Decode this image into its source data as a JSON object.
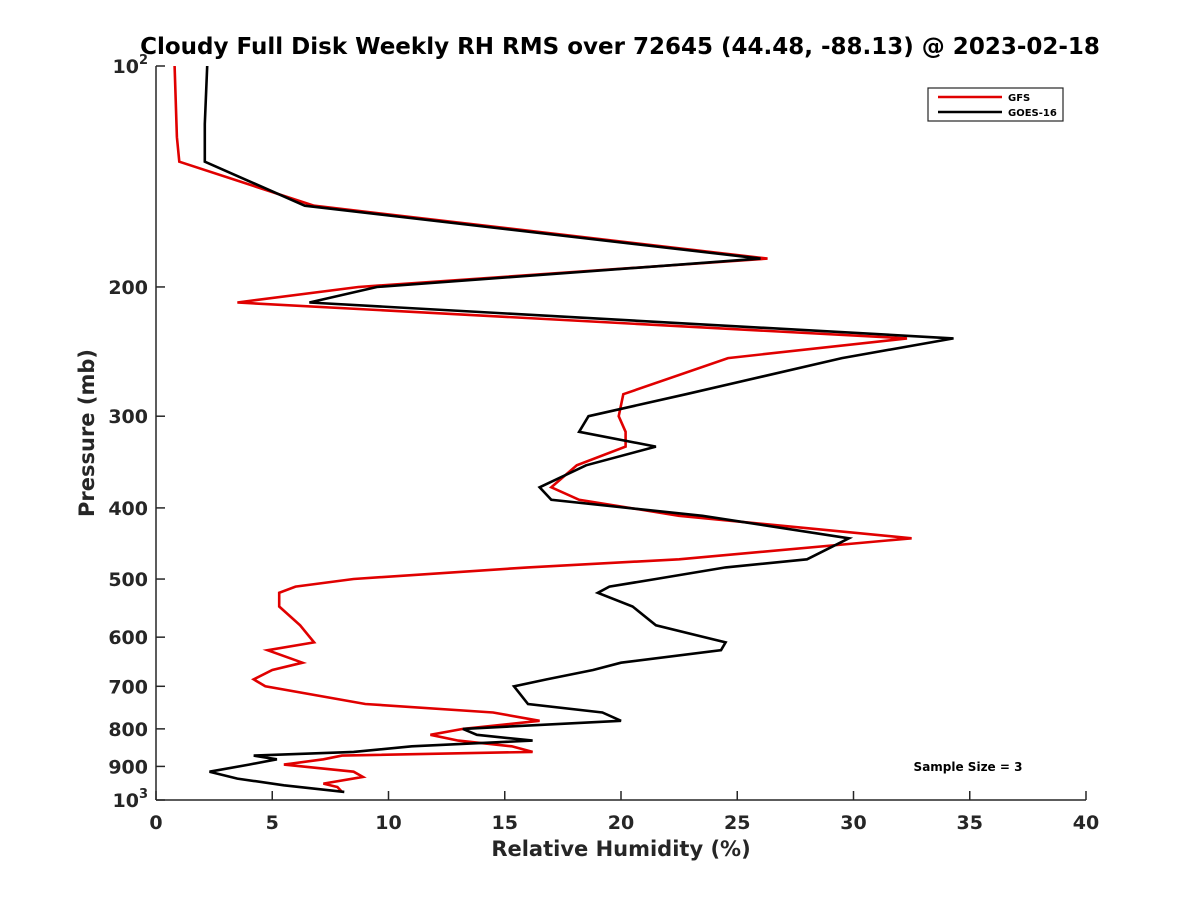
{
  "chart_data": {
    "type": "line",
    "title": "Cloudy Full Disk Weekly RH RMS over 72645 (44.48, -88.13) @ 2023-02-18",
    "xlabel": "Relative Humidity (%)",
    "ylabel": "Pressure (mb)",
    "xlim": [
      0,
      40
    ],
    "ylim": [
      100,
      1000
    ],
    "y_scale": "log",
    "y_reversed": true,
    "grid": false,
    "legend_position": "top-right",
    "xticks": [
      0,
      5,
      10,
      15,
      20,
      25,
      30,
      35,
      40
    ],
    "xtick_labels": [
      "0",
      "5",
      "10",
      "15",
      "20",
      "25",
      "30",
      "35",
      "40"
    ],
    "yticks": [
      100,
      200,
      300,
      400,
      500,
      600,
      700,
      800,
      900,
      1000
    ],
    "ytick_labels": [
      {
        "base": "10",
        "exp": "2"
      },
      {
        "base": "200",
        "exp": ""
      },
      {
        "base": "300",
        "exp": ""
      },
      {
        "base": "400",
        "exp": ""
      },
      {
        "base": "500",
        "exp": ""
      },
      {
        "base": "600",
        "exp": ""
      },
      {
        "base": "700",
        "exp": ""
      },
      {
        "base": "800",
        "exp": ""
      },
      {
        "base": "900",
        "exp": ""
      },
      {
        "base": "10",
        "exp": "3"
      }
    ],
    "annotation": "Sample Size = 3",
    "series": [
      {
        "name": "GFS",
        "color": "#e00000",
        "points": [
          [
            0.8,
            100
          ],
          [
            0.9,
            125
          ],
          [
            1.0,
            135
          ],
          [
            6.8,
            155
          ],
          [
            26.3,
            183
          ],
          [
            8.7,
            200
          ],
          [
            3.5,
            210
          ],
          [
            32.3,
            235
          ],
          [
            24.6,
            250
          ],
          [
            20.1,
            280
          ],
          [
            19.9,
            300
          ],
          [
            20.2,
            315
          ],
          [
            20.2,
            330
          ],
          [
            18.1,
            350
          ],
          [
            17.0,
            375
          ],
          [
            18.2,
            390
          ],
          [
            22.5,
            410
          ],
          [
            32.5,
            440
          ],
          [
            22.5,
            470
          ],
          [
            16.0,
            482
          ],
          [
            8.5,
            500
          ],
          [
            6.0,
            512
          ],
          [
            5.3,
            522
          ],
          [
            5.3,
            545
          ],
          [
            6.2,
            578
          ],
          [
            6.8,
            610
          ],
          [
            4.8,
            625
          ],
          [
            6.3,
            650
          ],
          [
            5.0,
            665
          ],
          [
            4.2,
            685
          ],
          [
            4.7,
            700
          ],
          [
            9.0,
            740
          ],
          [
            14.5,
            760
          ],
          [
            16.5,
            780
          ],
          [
            13.2,
            800
          ],
          [
            11.8,
            815
          ],
          [
            13.0,
            830
          ],
          [
            15.3,
            845
          ],
          [
            16.2,
            860
          ],
          [
            8.0,
            870
          ],
          [
            7.2,
            880
          ],
          [
            5.5,
            895
          ],
          [
            8.5,
            915
          ],
          [
            8.9,
            930
          ],
          [
            7.2,
            950
          ],
          [
            7.8,
            960
          ],
          [
            8.0,
            975
          ]
        ]
      },
      {
        "name": "GOES-16",
        "color": "#000000",
        "points": [
          [
            2.2,
            100
          ],
          [
            2.1,
            120
          ],
          [
            2.1,
            135
          ],
          [
            6.4,
            155
          ],
          [
            26.0,
            183
          ],
          [
            9.5,
            200
          ],
          [
            6.6,
            210
          ],
          [
            34.3,
            235
          ],
          [
            29.5,
            250
          ],
          [
            22.8,
            280
          ],
          [
            18.6,
            300
          ],
          [
            18.2,
            315
          ],
          [
            21.5,
            330
          ],
          [
            18.5,
            350
          ],
          [
            16.5,
            375
          ],
          [
            17.0,
            390
          ],
          [
            23.5,
            410
          ],
          [
            29.8,
            440
          ],
          [
            28.0,
            470
          ],
          [
            24.5,
            482
          ],
          [
            21.5,
            500
          ],
          [
            19.5,
            512
          ],
          [
            19.0,
            522
          ],
          [
            20.5,
            545
          ],
          [
            21.5,
            578
          ],
          [
            24.5,
            610
          ],
          [
            24.3,
            625
          ],
          [
            20.0,
            650
          ],
          [
            18.8,
            665
          ],
          [
            16.8,
            685
          ],
          [
            15.4,
            700
          ],
          [
            16.0,
            740
          ],
          [
            19.2,
            760
          ],
          [
            20.0,
            780
          ],
          [
            13.2,
            800
          ],
          [
            13.8,
            815
          ],
          [
            16.2,
            830
          ],
          [
            11.0,
            845
          ],
          [
            8.5,
            860
          ],
          [
            4.2,
            870
          ],
          [
            5.2,
            880
          ],
          [
            4.0,
            895
          ],
          [
            2.3,
            915
          ],
          [
            3.5,
            935
          ],
          [
            5.5,
            955
          ],
          [
            8.1,
            975
          ]
        ]
      }
    ]
  }
}
